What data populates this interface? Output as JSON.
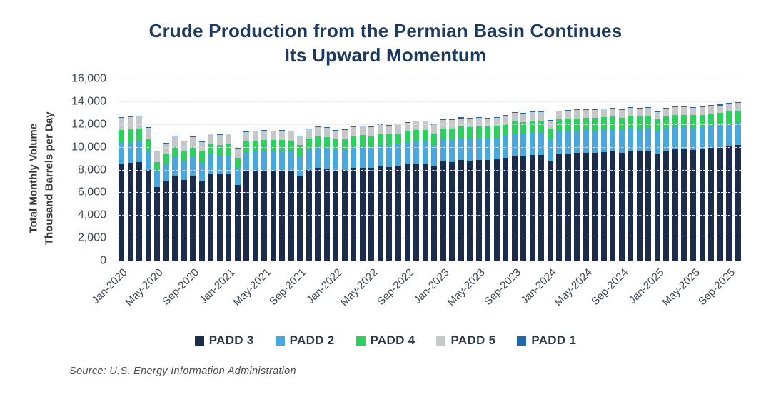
{
  "title": {
    "line1": "Crude Production from the Permian Basin Continues",
    "line2": "Its Upward Momentum"
  },
  "y_axis": {
    "title_line1": "Total Monthly Volume",
    "title_line2": "Thousand Barrels per Day",
    "ticks": [
      "16,000",
      "14,000",
      "12,000",
      "10,000",
      "8,000",
      "6,000",
      "4,000",
      "2,000",
      "0"
    ],
    "max": 16000
  },
  "legend": [
    {
      "label": "PADD 3",
      "color": "#1b2d4a"
    },
    {
      "label": "PADD 2",
      "color": "#47a8e0"
    },
    {
      "label": "PADD 4",
      "color": "#2bd05f"
    },
    {
      "label": "PADD 5",
      "color": "#c4c8cb"
    },
    {
      "label": "PADD 1",
      "color": "#2066ad"
    }
  ],
  "source": "Source: U.S. Energy Information Administration",
  "chart_data": {
    "type": "bar",
    "stacked": true,
    "title": "Crude Production from the Permian Basin Continues Its Upward Momentum",
    "ylabel": "Total Monthly Volume Thousand Barrels per Day",
    "unit": "thousand barrels per day",
    "ylim": [
      0,
      16000
    ],
    "grid": true,
    "legend_position": "bottom",
    "x_tick_every": 4,
    "x": [
      "Jan-2020",
      "Feb-2020",
      "Mar-2020",
      "Apr-2020",
      "May-2020",
      "Jun-2020",
      "Jul-2020",
      "Aug-2020",
      "Sep-2020",
      "Oct-2020",
      "Nov-2020",
      "Dec-2020",
      "Jan-2021",
      "Feb-2021",
      "Mar-2021",
      "Apr-2021",
      "May-2021",
      "Jun-2021",
      "Jul-2021",
      "Aug-2021",
      "Sep-2021",
      "Oct-2021",
      "Nov-2021",
      "Dec-2021",
      "Jan-2022",
      "Feb-2022",
      "Mar-2022",
      "Apr-2022",
      "May-2022",
      "Jun-2022",
      "Jul-2022",
      "Aug-2022",
      "Sep-2022",
      "Oct-2022",
      "Nov-2022",
      "Dec-2022",
      "Jan-2023",
      "Feb-2023",
      "Mar-2023",
      "Apr-2023",
      "May-2023",
      "Jun-2023",
      "Jul-2023",
      "Aug-2023",
      "Sep-2023",
      "Oct-2023",
      "Nov-2023",
      "Dec-2023",
      "Jan-2024",
      "Feb-2024",
      "Mar-2024",
      "Apr-2024",
      "May-2024",
      "Jun-2024",
      "Jul-2024",
      "Aug-2024",
      "Sep-2024",
      "Oct-2024",
      "Nov-2024",
      "Dec-2024",
      "Jan-2025",
      "Feb-2025",
      "Mar-2025",
      "Apr-2025",
      "May-2025",
      "Jun-2025",
      "Jul-2025",
      "Aug-2025",
      "Sep-2025",
      "Oct-2025"
    ],
    "series": [
      {
        "name": "PADD 3",
        "color": "#1b2d4a",
        "values": [
          8625,
          8650,
          8700,
          8050,
          6500,
          7100,
          7550,
          7150,
          7500,
          7050,
          7700,
          7650,
          7700,
          6700,
          7900,
          7950,
          8000,
          7950,
          7980,
          7900,
          7450,
          8050,
          8200,
          8150,
          8000,
          8050,
          8200,
          8250,
          8200,
          8350,
          8300,
          8400,
          8550,
          8600,
          8620,
          8400,
          8800,
          8750,
          8900,
          8850,
          8900,
          8880,
          8950,
          9100,
          9300,
          9250,
          9350,
          9350,
          8800,
          9450,
          9500,
          9550,
          9550,
          9550,
          9600,
          9650,
          9550,
          9700,
          9650,
          9700,
          9500,
          9750,
          9850,
          9850,
          9800,
          9850,
          9950,
          10000,
          10150,
          10200
        ]
      },
      {
        "name": "PADD 2",
        "color": "#47a8e0",
        "values": [
          1815,
          1830,
          1850,
          1680,
          1400,
          1500,
          1600,
          1620,
          1650,
          1680,
          1700,
          1680,
          1680,
          1500,
          1700,
          1730,
          1750,
          1760,
          1770,
          1780,
          1800,
          1820,
          1850,
          1840,
          1800,
          1780,
          1850,
          1870,
          1850,
          1880,
          1870,
          1880,
          1900,
          1920,
          1920,
          1850,
          1900,
          1900,
          1920,
          1920,
          1930,
          1930,
          1930,
          1950,
          1960,
          1960,
          1970,
          1970,
          1850,
          1950,
          1960,
          1960,
          1970,
          1960,
          1970,
          1980,
          1970,
          1980,
          1970,
          1980,
          1900,
          1920,
          1940,
          1940,
          1940,
          1940,
          1950,
          1950,
          1950,
          1950
        ]
      },
      {
        "name": "PADD 4",
        "color": "#2bd05f",
        "values": [
          1120,
          1120,
          1130,
          1020,
          850,
          850,
          870,
          880,
          900,
          920,
          930,
          930,
          930,
          880,
          920,
          930,
          930,
          930,
          930,
          940,
          950,
          950,
          960,
          950,
          930,
          930,
          950,
          960,
          960,
          970,
          970,
          980,
          990,
          1000,
          1000,
          980,
          1000,
          1000,
          1010,
          1010,
          1020,
          1020,
          1030,
          1040,
          1050,
          1050,
          1060,
          1060,
          1000,
          1060,
          1070,
          1070,
          1080,
          1080,
          1090,
          1100,
          1090,
          1100,
          1100,
          1100,
          1080,
          1090,
          1100,
          1100,
          1100,
          1100,
          1100,
          1110,
          1100,
          1100
        ]
      },
      {
        "name": "PADD 5",
        "color": "#c4c8cb",
        "values": [
          1065,
          1060,
          1050,
          980,
          930,
          930,
          940,
          900,
          870,
          850,
          860,
          850,
          840,
          830,
          830,
          820,
          820,
          810,
          810,
          810,
          800,
          800,
          800,
          790,
          780,
          780,
          780,
          780,
          770,
          770,
          760,
          760,
          760,
          760,
          750,
          750,
          750,
          750,
          750,
          740,
          740,
          740,
          730,
          730,
          730,
          720,
          720,
          720,
          710,
          710,
          710,
          700,
          700,
          700,
          700,
          700,
          690,
          690,
          690,
          690,
          660,
          660,
          660,
          660,
          650,
          650,
          650,
          650,
          650,
          650
        ]
      },
      {
        "name": "PADD 1",
        "color": "#2066ad",
        "values": [
          75,
          75,
          80,
          70,
          60,
          65,
          65,
          65,
          65,
          60,
          65,
          65,
          65,
          60,
          65,
          65,
          65,
          65,
          65,
          65,
          65,
          65,
          65,
          65,
          65,
          65,
          65,
          65,
          65,
          65,
          65,
          65,
          65,
          65,
          65,
          65,
          65,
          65,
          65,
          65,
          65,
          65,
          65,
          65,
          65,
          65,
          65,
          65,
          60,
          65,
          65,
          65,
          65,
          65,
          65,
          65,
          65,
          65,
          65,
          65,
          60,
          65,
          65,
          65,
          65,
          65,
          65,
          65,
          65,
          65
        ]
      }
    ]
  }
}
